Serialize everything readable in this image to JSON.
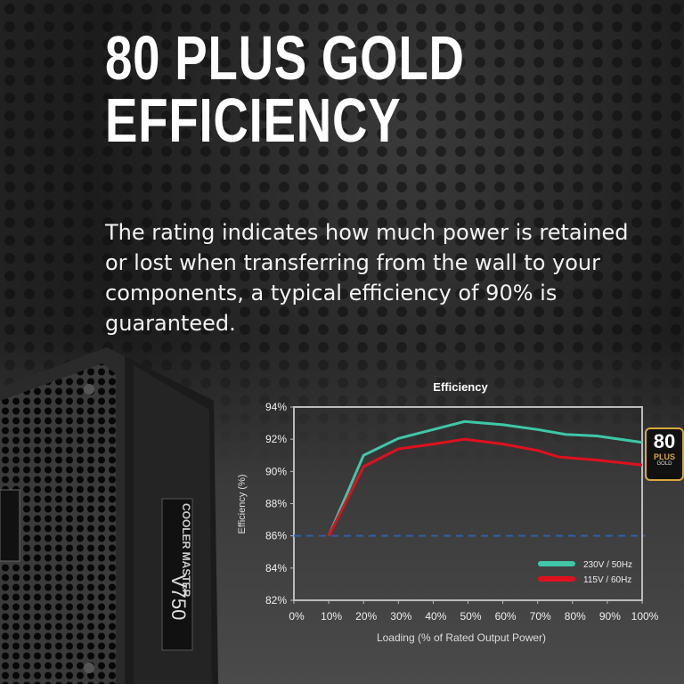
{
  "headline": {
    "line1": "80 PLUS GOLD",
    "line2": "EFFICIENCY"
  },
  "description": "The rating indicates how much power is retained or lost when transferring from the wall to your components, a typical efficiency of 90% is guaranteed.",
  "product": {
    "brand": "COOLER MASTER",
    "model": "V750"
  },
  "badge": {
    "number": "80",
    "plus": "PLUS",
    "tier": "GOLD",
    "color": "#d9a93a"
  },
  "chart_data": {
    "type": "line",
    "title": "Efficiency",
    "xlabel": "Loading (% of Rated Output Power)",
    "ylabel": "Efficiency (%)",
    "xlim": [
      0,
      100
    ],
    "ylim": [
      82,
      94
    ],
    "xticks": [
      "0%",
      "10%",
      "20%",
      "30%",
      "40%",
      "50%",
      "60%",
      "70%",
      "80%",
      "90%",
      "100%"
    ],
    "yticks": [
      "82%",
      "84%",
      "86%",
      "88%",
      "90%",
      "92%",
      "94%"
    ],
    "grid": false,
    "legend": "bottom-right",
    "reference_line": {
      "y": 86,
      "style": "dashed",
      "color": "#2f5fa8"
    },
    "series": [
      {
        "name": "230V / 50Hz",
        "color": "#3ec8a8",
        "x": [
          10,
          20,
          30,
          40,
          49,
          60,
          70,
          78,
          87,
          100
        ],
        "y": [
          86,
          91,
          92.05,
          92.6,
          93.1,
          92.9,
          92.6,
          92.3,
          92.2,
          91.8
        ]
      },
      {
        "name": "115V / 60Hz",
        "color": "#e0101e",
        "x": [
          10,
          20,
          30,
          40,
          49,
          60,
          70,
          76,
          87,
          100
        ],
        "y": [
          86,
          90.3,
          91.4,
          91.7,
          92,
          91.7,
          91.3,
          90.9,
          90.7,
          90.4
        ]
      }
    ]
  }
}
